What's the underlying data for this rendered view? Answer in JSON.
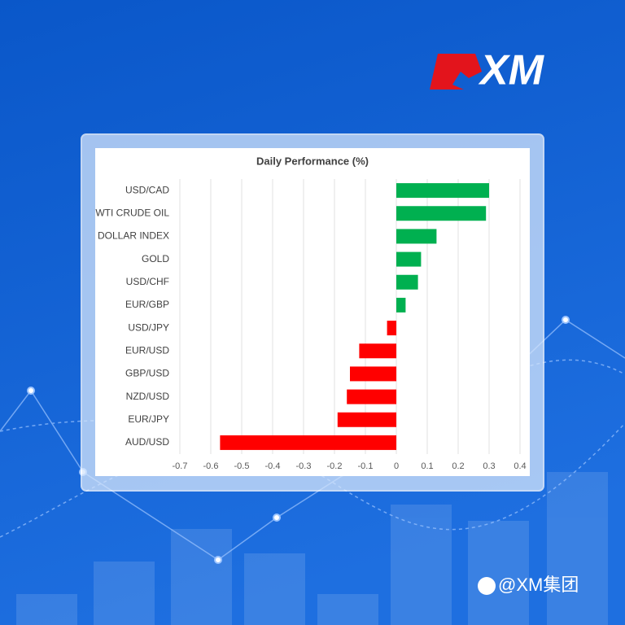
{
  "brand": {
    "logo": "XM",
    "watermark": "@XM集团"
  },
  "chart_data": {
    "type": "bar",
    "orientation": "horizontal",
    "title": "Daily Performance (%)",
    "categories": [
      "USD/CAD",
      "WTI CRUDE OIL",
      "DOLLAR INDEX",
      "GOLD",
      "USD/CHF",
      "EUR/GBP",
      "USD/JPY",
      "EUR/USD",
      "GBP/USD",
      "NZD/USD",
      "EUR/JPY",
      "AUD/USD"
    ],
    "values": [
      0.3,
      0.29,
      0.13,
      0.08,
      0.07,
      0.03,
      -0.03,
      -0.12,
      -0.15,
      -0.16,
      -0.19,
      -0.57
    ],
    "colors": [
      "#00b050",
      "#00b050",
      "#00b050",
      "#00b050",
      "#00b050",
      "#00b050",
      "#ff0000",
      "#ff0000",
      "#ff0000",
      "#ff0000",
      "#ff0000",
      "#ff0000"
    ],
    "xlim": [
      -0.7,
      0.4
    ],
    "xticks": [
      -0.7,
      -0.6,
      -0.5,
      -0.4,
      -0.3,
      -0.2,
      -0.1,
      0,
      0.1,
      0.2,
      0.3,
      0.4
    ],
    "grid": true
  }
}
